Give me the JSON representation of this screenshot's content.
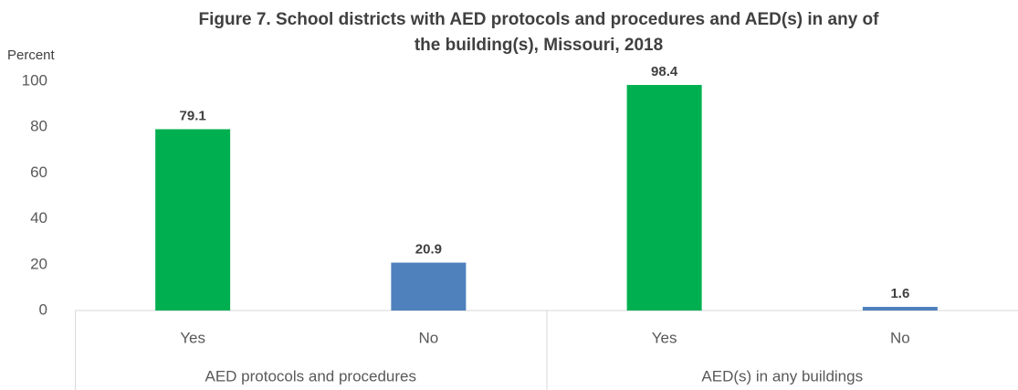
{
  "chart_data": {
    "type": "bar",
    "title": [
      "Figure 7. School districts with AED protocols and procedures and AED(s) in any of",
      "the building(s), Missouri, 2018"
    ],
    "y_label": "Percent",
    "categories": [
      "Yes",
      "No",
      "Yes",
      "No"
    ],
    "groups": [
      "AED protocols and procedures",
      "AED(s) in any buildings"
    ],
    "values": [
      79.1,
      20.9,
      98.4,
      1.6
    ],
    "colors": [
      "#00b050",
      "#4f81bd",
      "#00b050",
      "#4f81bd"
    ],
    "ylim": [
      0,
      100
    ],
    "yticks": [
      0,
      20,
      40,
      60,
      80,
      100
    ],
    "grid": false
  }
}
